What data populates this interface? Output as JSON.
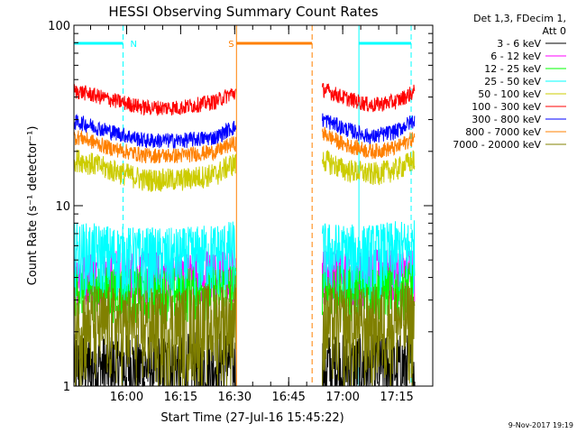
{
  "chart_data": {
    "type": "line",
    "title": "HESSI Observing Summary Count Rates",
    "xlabel": "Start Time (27-Jul-16 15:45:22)",
    "ylabel": "Count Rate (s⁻¹ detector⁻¹)",
    "y_scale": "log",
    "ylim": [
      1,
      100
    ],
    "xlim": [
      "15:45:22",
      "17:25:00"
    ],
    "x_ticks": [
      "16:00",
      "16:15",
      "16:30",
      "16:45",
      "17:00",
      "17:15"
    ],
    "y_ticks": [
      "1",
      "10",
      "100"
    ],
    "grid": false,
    "legend_header": [
      "Det 1,3, FDecim 1,",
      "Att 0"
    ],
    "legend_position": "top-right",
    "timestamp": "9-Nov-2017 19:19",
    "series": [
      {
        "name": "3 - 6 keV",
        "color": "#000000",
        "values": [
          {
            "x": "15:47",
            "y": 1.3
          },
          {
            "x": "16:00",
            "y": 1.3
          },
          {
            "x": "16:15",
            "y": 1.3
          },
          {
            "x": "16:29",
            "y": 1.4
          },
          {
            "x": "16:30",
            "y": 1.3
          },
          {
            "x": "16:55",
            "y": 1.3
          },
          {
            "x": "17:05",
            "y": 1.3
          },
          {
            "x": "17:20",
            "y": 1.3
          }
        ]
      },
      {
        "name": "6 - 12 keV",
        "color": "#ff00ff",
        "values": [
          {
            "x": "15:47",
            "y": 4.2
          },
          {
            "x": "16:00",
            "y": 4.2
          },
          {
            "x": "16:15",
            "y": 4.1
          },
          {
            "x": "16:29",
            "y": 4.3
          },
          {
            "x": "16:55",
            "y": 4.3
          },
          {
            "x": "17:05",
            "y": 4.2
          },
          {
            "x": "17:20",
            "y": 4.4
          }
        ]
      },
      {
        "name": "12 - 25 keV",
        "color": "#00ff00",
        "values": [
          {
            "x": "15:47",
            "y": 3.5
          },
          {
            "x": "16:00",
            "y": 3.4
          },
          {
            "x": "16:15",
            "y": 3.4
          },
          {
            "x": "16:29",
            "y": 3.6
          },
          {
            "x": "16:55",
            "y": 3.5
          },
          {
            "x": "17:05",
            "y": 3.4
          },
          {
            "x": "17:20",
            "y": 3.6
          }
        ]
      },
      {
        "name": "25 - 50 keV",
        "color": "#00ffff",
        "values": [
          {
            "x": "15:47",
            "y": 5.6
          },
          {
            "x": "16:00",
            "y": 5.3
          },
          {
            "x": "16:15",
            "y": 5.2
          },
          {
            "x": "16:29",
            "y": 5.7
          },
          {
            "x": "16:55",
            "y": 5.6
          },
          {
            "x": "17:05",
            "y": 5.4
          },
          {
            "x": "17:20",
            "y": 5.8
          }
        ]
      },
      {
        "name": "50 - 100 keV",
        "color": "#cccc00",
        "values": [
          {
            "x": "15:47",
            "y": 18
          },
          {
            "x": "15:55",
            "y": 16
          },
          {
            "x": "16:05",
            "y": 14
          },
          {
            "x": "16:15",
            "y": 14
          },
          {
            "x": "16:25",
            "y": 15
          },
          {
            "x": "16:29",
            "y": 17
          },
          {
            "x": "16:55",
            "y": 18
          },
          {
            "x": "17:00",
            "y": 16
          },
          {
            "x": "17:08",
            "y": 15
          },
          {
            "x": "17:15",
            "y": 16
          },
          {
            "x": "17:20",
            "y": 18
          }
        ]
      },
      {
        "name": "100 - 300 keV",
        "color": "#ff0000",
        "values": [
          {
            "x": "15:47",
            "y": 43
          },
          {
            "x": "15:55",
            "y": 39
          },
          {
            "x": "16:05",
            "y": 35
          },
          {
            "x": "16:15",
            "y": 35
          },
          {
            "x": "16:25",
            "y": 38
          },
          {
            "x": "16:29",
            "y": 42
          },
          {
            "x": "16:55",
            "y": 44
          },
          {
            "x": "17:00",
            "y": 40
          },
          {
            "x": "17:08",
            "y": 36
          },
          {
            "x": "17:15",
            "y": 38
          },
          {
            "x": "17:20",
            "y": 43
          }
        ]
      },
      {
        "name": "300 - 800 keV",
        "color": "#0000ff",
        "values": [
          {
            "x": "15:47",
            "y": 29
          },
          {
            "x": "15:55",
            "y": 26
          },
          {
            "x": "16:05",
            "y": 23
          },
          {
            "x": "16:15",
            "y": 23
          },
          {
            "x": "16:25",
            "y": 24
          },
          {
            "x": "16:29",
            "y": 27
          },
          {
            "x": "16:55",
            "y": 30
          },
          {
            "x": "17:00",
            "y": 27
          },
          {
            "x": "17:08",
            "y": 24
          },
          {
            "x": "17:15",
            "y": 26
          },
          {
            "x": "17:20",
            "y": 30
          }
        ]
      },
      {
        "name": "800 - 7000 keV",
        "color": "#ff8000",
        "values": [
          {
            "x": "15:47",
            "y": 24
          },
          {
            "x": "15:55",
            "y": 21
          },
          {
            "x": "16:05",
            "y": 19
          },
          {
            "x": "16:15",
            "y": 19
          },
          {
            "x": "16:25",
            "y": 20
          },
          {
            "x": "16:29",
            "y": 22
          },
          {
            "x": "16:55",
            "y": 25
          },
          {
            "x": "17:00",
            "y": 22
          },
          {
            "x": "17:08",
            "y": 20
          },
          {
            "x": "17:15",
            "y": 21
          },
          {
            "x": "17:20",
            "y": 24
          }
        ]
      },
      {
        "name": "7000 - 20000 keV",
        "color": "#808000",
        "values": [
          {
            "x": "15:47",
            "y": 2.3
          },
          {
            "x": "16:00",
            "y": 2.2
          },
          {
            "x": "16:15",
            "y": 2.2
          },
          {
            "x": "16:29",
            "y": 2.4
          },
          {
            "x": "16:55",
            "y": 2.3
          },
          {
            "x": "17:05",
            "y": 2.2
          },
          {
            "x": "17:20",
            "y": 2.4
          }
        ]
      }
    ],
    "annotations": [
      {
        "label": "N",
        "color": "#00ffff",
        "start": "15:45:22",
        "end": "15:59:00"
      },
      {
        "label": "",
        "color": "#00ffff",
        "start": "17:04:30",
        "end": "17:19:00"
      },
      {
        "label": "S",
        "color": "#ff8000",
        "start": "16:30:30",
        "end": "16:51:30"
      }
    ],
    "data_gap": {
      "start": "16:30:30",
      "end": "16:54:00"
    }
  }
}
